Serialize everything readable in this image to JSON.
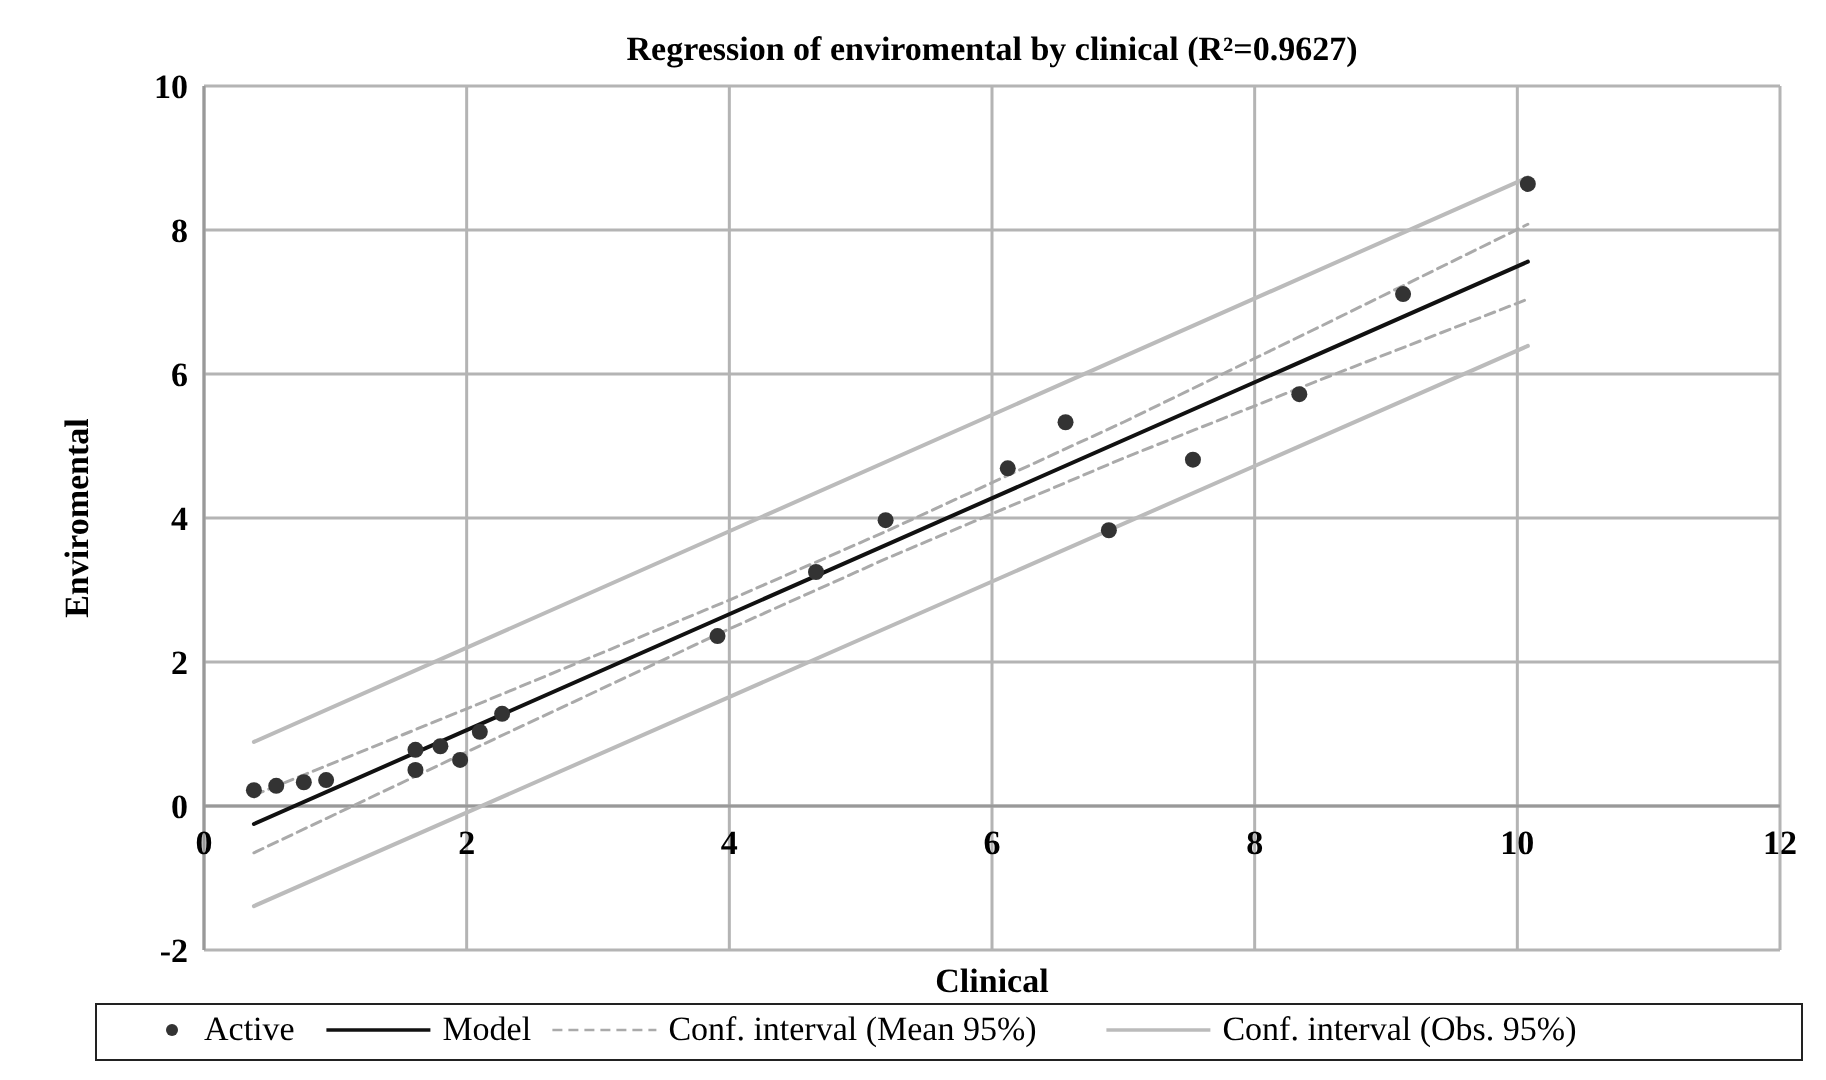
{
  "chart_data": {
    "type": "scatter",
    "title": "Regression of enviromental by clinical (R²=0.9627)",
    "xlabel": "Clinical",
    "ylabel": "Enviromental",
    "xlim": [
      0,
      12
    ],
    "xticks": [
      0,
      2,
      4,
      6,
      8,
      10,
      12
    ],
    "ylim": [
      -2,
      10
    ],
    "yticks": [
      -2,
      0,
      2,
      4,
      6,
      8,
      10
    ],
    "grid": true,
    "legend": "bottom",
    "series": [
      {
        "name": "Active",
        "marker": "circle",
        "color": "#333333",
        "x": [
          0.38,
          0.55,
          0.76,
          0.93,
          1.61,
          1.61,
          1.8,
          1.95,
          2.1,
          2.27,
          3.91,
          4.66,
          5.19,
          6.12,
          6.56,
          6.89,
          7.53,
          8.34,
          9.13,
          10.08
        ],
        "values": [
          0.22,
          0.28,
          0.33,
          0.36,
          0.78,
          0.5,
          0.83,
          0.64,
          1.03,
          1.28,
          2.36,
          3.25,
          3.97,
          4.69,
          5.33,
          3.83,
          4.81,
          5.72,
          7.11,
          8.64
        ]
      },
      {
        "name": "Model",
        "type": "line",
        "line_style": "solid",
        "color": "#111111",
        "x": [
          0.38,
          10.08
        ],
        "values": [
          -0.25,
          7.56
        ]
      },
      {
        "name": "Conf. interval (Mean 95%)",
        "type": "line",
        "line_style": "dashed",
        "color": "#aaaaaa",
        "x": [
          0.38,
          2,
          4,
          5.2,
          7,
          8.5,
          10.08
        ],
        "values": [
          0.15,
          1.35,
          2.86,
          3.82,
          5.33,
          6.66,
          8.08
        ]
      },
      {
        "type": "line",
        "line_style": "dashed",
        "color": "#aaaaaa",
        "x": [
          0.38,
          2,
          4,
          5.2,
          7,
          8.5,
          10.08
        ],
        "values": [
          -0.65,
          0.75,
          2.46,
          3.44,
          4.83,
          5.92,
          7.04
        ]
      },
      {
        "name": "Conf. interval (Obs. 95%)",
        "type": "line",
        "line_style": "solid",
        "color": "#bbbbbb",
        "x": [
          0.38,
          10.08
        ],
        "values": [
          0.89,
          8.73
        ]
      },
      {
        "type": "line",
        "line_style": "solid",
        "color": "#bbbbbb",
        "x": [
          0.38,
          10.08
        ],
        "values": [
          -1.39,
          6.39
        ]
      }
    ]
  }
}
